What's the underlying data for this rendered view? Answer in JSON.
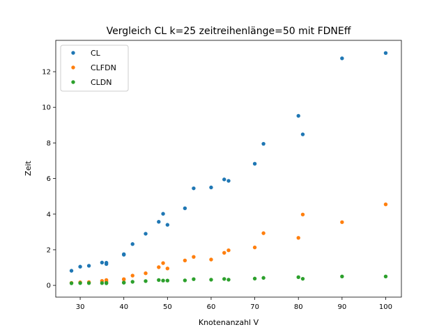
{
  "chart_data": {
    "type": "scatter",
    "title": "Vergleich CL k=25 zeitreihenlänge=50 mit FDNEff",
    "xlabel": "Knotenanzahl V",
    "ylabel": "Zeit",
    "xlim": [
      24.4,
      103.6
    ],
    "ylim": [
      -0.66,
      13.76
    ],
    "xticks": [
      30,
      40,
      50,
      60,
      70,
      80,
      90,
      100
    ],
    "yticks": [
      0,
      2,
      4,
      6,
      8,
      10,
      12
    ],
    "grid": false,
    "legend_position": "top-left",
    "series": [
      {
        "name": "CL",
        "color": "#1f77b4",
        "points": [
          [
            28,
            0.82
          ],
          [
            30,
            1.05
          ],
          [
            32,
            1.1
          ],
          [
            35,
            1.28
          ],
          [
            36,
            1.27
          ],
          [
            36,
            1.2
          ],
          [
            40,
            1.75
          ],
          [
            40,
            1.72
          ],
          [
            42,
            2.32
          ],
          [
            45,
            2.9
          ],
          [
            48,
            3.57
          ],
          [
            49,
            4.02
          ],
          [
            50,
            3.4
          ],
          [
            54,
            4.33
          ],
          [
            56,
            5.45
          ],
          [
            60,
            5.5
          ],
          [
            63,
            5.95
          ],
          [
            64,
            5.87
          ],
          [
            70,
            6.83
          ],
          [
            72,
            7.95
          ],
          [
            80,
            9.52
          ],
          [
            81,
            8.48
          ],
          [
            90,
            12.75
          ],
          [
            100,
            13.05
          ]
        ]
      },
      {
        "name": "CLFDN",
        "color": "#ff7f0e",
        "points": [
          [
            28,
            0.14
          ],
          [
            30,
            0.17
          ],
          [
            32,
            0.18
          ],
          [
            35,
            0.25
          ],
          [
            36,
            0.3
          ],
          [
            36,
            0.22
          ],
          [
            40,
            0.35
          ],
          [
            40,
            0.33
          ],
          [
            42,
            0.55
          ],
          [
            45,
            0.68
          ],
          [
            48,
            1.02
          ],
          [
            49,
            1.25
          ],
          [
            50,
            0.95
          ],
          [
            54,
            1.4
          ],
          [
            56,
            1.6
          ],
          [
            60,
            1.45
          ],
          [
            63,
            1.83
          ],
          [
            64,
            1.97
          ],
          [
            70,
            2.13
          ],
          [
            72,
            2.93
          ],
          [
            80,
            2.67
          ],
          [
            81,
            3.98
          ],
          [
            90,
            3.55
          ],
          [
            100,
            4.55
          ]
        ]
      },
      {
        "name": "CLDN",
        "color": "#2ca02c",
        "points": [
          [
            28,
            0.12
          ],
          [
            30,
            0.13
          ],
          [
            32,
            0.13
          ],
          [
            35,
            0.13
          ],
          [
            36,
            0.14
          ],
          [
            36,
            0.12
          ],
          [
            40,
            0.15
          ],
          [
            40,
            0.16
          ],
          [
            42,
            0.2
          ],
          [
            45,
            0.24
          ],
          [
            48,
            0.3
          ],
          [
            49,
            0.27
          ],
          [
            50,
            0.27
          ],
          [
            54,
            0.28
          ],
          [
            56,
            0.35
          ],
          [
            60,
            0.32
          ],
          [
            63,
            0.36
          ],
          [
            64,
            0.32
          ],
          [
            70,
            0.38
          ],
          [
            72,
            0.42
          ],
          [
            80,
            0.46
          ],
          [
            81,
            0.37
          ],
          [
            90,
            0.5
          ],
          [
            100,
            0.5
          ]
        ]
      }
    ]
  }
}
